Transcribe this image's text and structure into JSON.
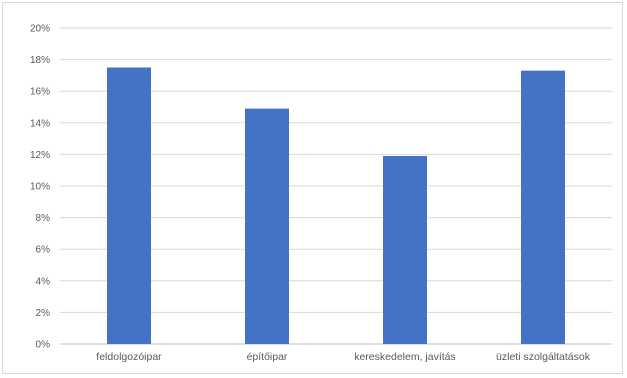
{
  "chart_data": {
    "type": "bar",
    "categories": [
      "feldolgozóipar",
      "építőipar",
      "kereskedelem, javítás",
      "üzleti szolgáltatások"
    ],
    "values": [
      17.5,
      14.9,
      11.9,
      17.3
    ],
    "unit": "%",
    "ylim": [
      0,
      20
    ],
    "yticks": [
      0,
      2,
      4,
      6,
      8,
      10,
      12,
      14,
      16,
      18,
      20
    ],
    "ytick_labels": [
      "0%",
      "2%",
      "4%",
      "6%",
      "8%",
      "10%",
      "12%",
      "14%",
      "16%",
      "18%",
      "20%"
    ],
    "grid": true,
    "legend": "none",
    "bar_color": "#4472c4",
    "grid_color": "#d9d9d9",
    "text_color": "#595959"
  }
}
